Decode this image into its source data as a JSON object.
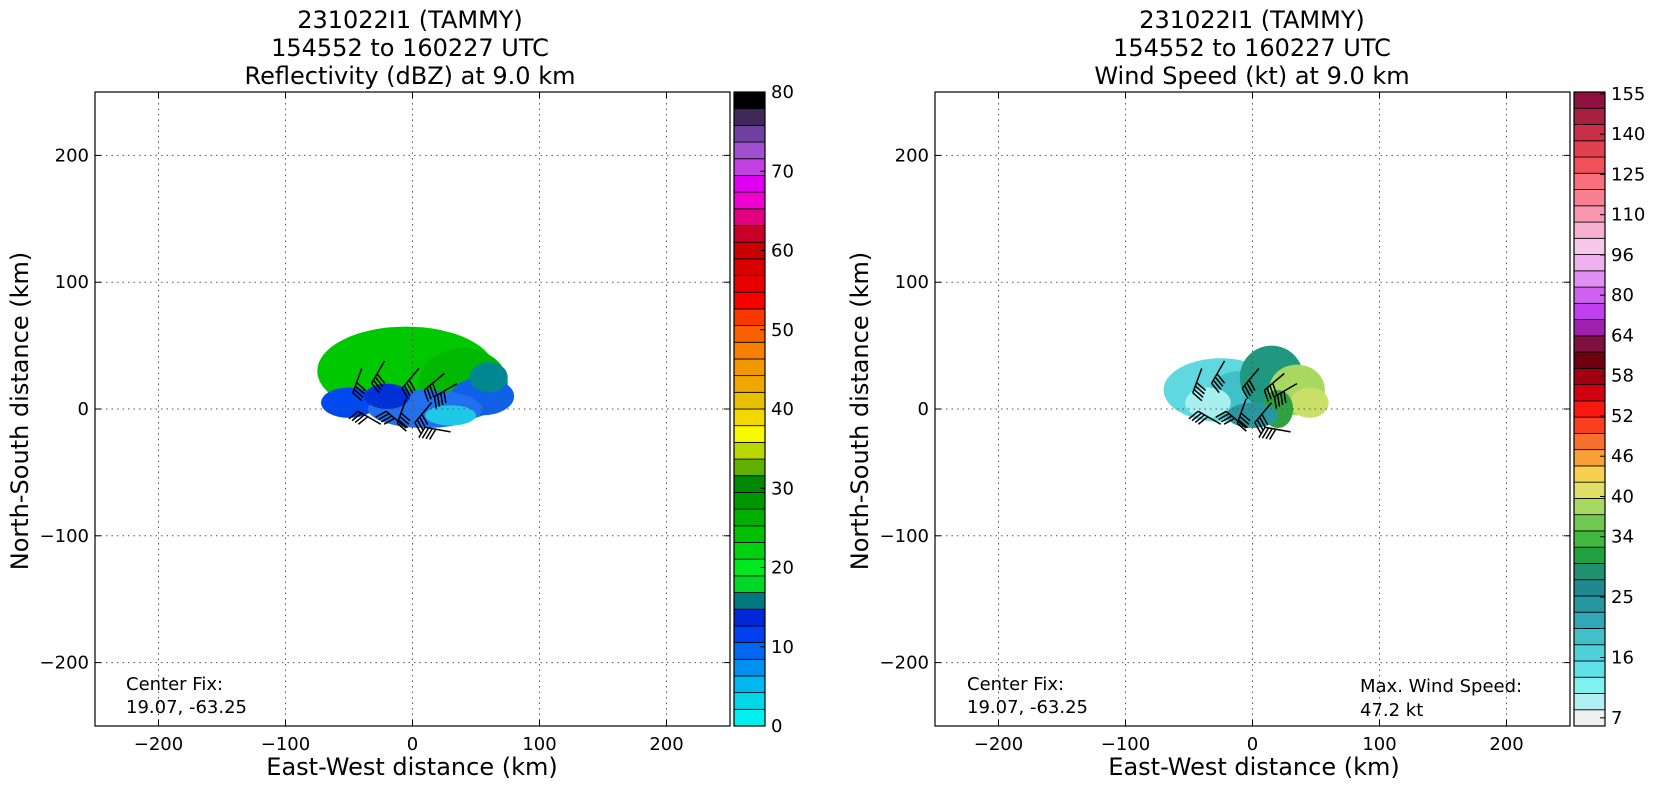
{
  "chart_data": [
    {
      "type": "heatmap",
      "title_lines": [
        "231022I1 (TAMMY)",
        "154552 to 160227 UTC",
        "Reflectivity (dBZ) at 9.0 km"
      ],
      "xlabel": "East-West distance (km)",
      "ylabel": "North-South distance (km)",
      "xlim": [
        -250,
        250
      ],
      "ylim": [
        -250,
        250
      ],
      "xticks": [
        -200,
        -100,
        0,
        100,
        200
      ],
      "yticks": [
        -200,
        -100,
        0,
        100,
        200
      ],
      "grid": true,
      "center_fix_label": "Center Fix:",
      "center_fix_value": "19.07, -63.25",
      "colorbar": {
        "ticks": [
          0,
          10,
          20,
          30,
          40,
          50,
          60,
          70,
          80
        ],
        "vmin": 0,
        "vmax": 80,
        "colors": [
          "#00f0f0",
          "#00d8e8",
          "#00b8f0",
          "#0090f0",
          "#0068f0",
          "#0040f0",
          "#0028d8",
          "#007880",
          "#00d828",
          "#00e820",
          "#00d010",
          "#00c000",
          "#00b000",
          "#009800",
          "#008800",
          "#60b000",
          "#b8d800",
          "#f8f800",
          "#f0d800",
          "#e8c000",
          "#f0a800",
          "#f09800",
          "#f88000",
          "#f86000",
          "#f83800",
          "#f80000",
          "#e80000",
          "#d80000",
          "#c80000",
          "#c80028",
          "#e00080",
          "#f000d0",
          "#e000f0",
          "#c040e0",
          "#a050d0",
          "#7040a0",
          "#402858",
          "#000000"
        ]
      },
      "field": {
        "blobs": [
          {
            "x": -5,
            "y": 30,
            "rx": 70,
            "ry": 35,
            "color": "#00c800"
          },
          {
            "x": 40,
            "y": 20,
            "rx": 35,
            "ry": 28,
            "color": "#00b800"
          },
          {
            "x": 55,
            "y": 10,
            "rx": 25,
            "ry": 15,
            "color": "#1060e8"
          },
          {
            "x": -50,
            "y": 5,
            "rx": 22,
            "ry": 12,
            "color": "#0048f0"
          },
          {
            "x": 10,
            "y": 0,
            "rx": 45,
            "ry": 15,
            "color": "#2070f0"
          },
          {
            "x": 30,
            "y": -5,
            "rx": 20,
            "ry": 8,
            "color": "#20c8e8"
          },
          {
            "x": -20,
            "y": 10,
            "rx": 18,
            "ry": 10,
            "color": "#0030d8"
          },
          {
            "x": 60,
            "y": 25,
            "rx": 15,
            "ry": 12,
            "color": "#008890"
          }
        ]
      },
      "wind_barbs": [
        {
          "x": -40,
          "y": 32,
          "dir": 200
        },
        {
          "x": -22,
          "y": 38,
          "dir": 210
        },
        {
          "x": 5,
          "y": 32,
          "dir": 220
        },
        {
          "x": 25,
          "y": 28,
          "dir": 230
        },
        {
          "x": 35,
          "y": 20,
          "dir": 240
        },
        {
          "x": -5,
          "y": 8,
          "dir": 200
        },
        {
          "x": 15,
          "y": 5,
          "dir": 220
        },
        {
          "x": -25,
          "y": -12,
          "dir": 300
        },
        {
          "x": -5,
          "y": -15,
          "dir": 310
        },
        {
          "x": 30,
          "y": -18,
          "dir": 280
        }
      ]
    },
    {
      "type": "heatmap",
      "title_lines": [
        "231022I1 (TAMMY)",
        "154552 to 160227 UTC",
        "Wind Speed (kt) at 9.0 km"
      ],
      "xlabel": "East-West distance (km)",
      "ylabel": "North-South distance (km)",
      "xlim": [
        -250,
        250
      ],
      "ylim": [
        -250,
        250
      ],
      "xticks": [
        -200,
        -100,
        0,
        100,
        200
      ],
      "yticks": [
        -200,
        -100,
        0,
        100,
        200
      ],
      "grid": true,
      "center_fix_label": "Center Fix:",
      "center_fix_value": "19.07, -63.25",
      "max_wind_label": "Max. Wind Speed:",
      "max_wind_value": "47.2 kt",
      "colorbar": {
        "ticks": [
          7,
          16,
          25,
          34,
          40,
          46,
          52,
          58,
          64,
          80,
          96,
          110,
          125,
          140,
          155
        ],
        "tick_positions": [
          0,
          3,
          6,
          9,
          11,
          13,
          15,
          17,
          19,
          21,
          23,
          25,
          27,
          29,
          31
        ],
        "colors": [
          "#f0f0f0",
          "#b0f0f0",
          "#80f0f0",
          "#60e0e8",
          "#50d0d8",
          "#40c0c8",
          "#30a8b8",
          "#2898a0",
          "#208890",
          "#209070",
          "#20a040",
          "#40b840",
          "#70c850",
          "#a8d860",
          "#e0e068",
          "#f8d050",
          "#f8a038",
          "#f87030",
          "#f84020",
          "#f81810",
          "#d00010",
          "#a00010",
          "#700010",
          "#801040",
          "#a020b0",
          "#c040f0",
          "#d060f0",
          "#e090f0",
          "#f0b0f0",
          "#f8c8e8",
          "#f8b0d0",
          "#f898b0",
          "#f88090",
          "#f87080",
          "#f05058",
          "#e04050",
          "#c83048",
          "#a82040",
          "#901040"
        ]
      },
      "field": {
        "blobs": [
          {
            "x": -25,
            "y": 15,
            "rx": 45,
            "ry": 25,
            "color": "#60d8e0"
          },
          {
            "x": -10,
            "y": 10,
            "rx": 25,
            "ry": 20,
            "color": "#40c0c8"
          },
          {
            "x": 15,
            "y": 25,
            "rx": 25,
            "ry": 25,
            "color": "#209880"
          },
          {
            "x": 35,
            "y": 15,
            "rx": 22,
            "ry": 20,
            "color": "#a8d860"
          },
          {
            "x": 45,
            "y": 5,
            "rx": 15,
            "ry": 12,
            "color": "#c8e068"
          },
          {
            "x": 20,
            "y": 0,
            "rx": 12,
            "ry": 15,
            "color": "#30a040"
          },
          {
            "x": -35,
            "y": 5,
            "rx": 18,
            "ry": 12,
            "color": "#a8f0f0"
          },
          {
            "x": 0,
            "y": -5,
            "rx": 20,
            "ry": 10,
            "color": "#2898a0"
          }
        ]
      },
      "wind_barbs": [
        {
          "x": -40,
          "y": 32,
          "dir": 200
        },
        {
          "x": -22,
          "y": 38,
          "dir": 210
        },
        {
          "x": 5,
          "y": 32,
          "dir": 220
        },
        {
          "x": 25,
          "y": 28,
          "dir": 230
        },
        {
          "x": 35,
          "y": 20,
          "dir": 240
        },
        {
          "x": -5,
          "y": 8,
          "dir": 200
        },
        {
          "x": 15,
          "y": 5,
          "dir": 220
        },
        {
          "x": -25,
          "y": -12,
          "dir": 300
        },
        {
          "x": -5,
          "y": -15,
          "dir": 310
        },
        {
          "x": 30,
          "y": -18,
          "dir": 280
        }
      ]
    }
  ]
}
